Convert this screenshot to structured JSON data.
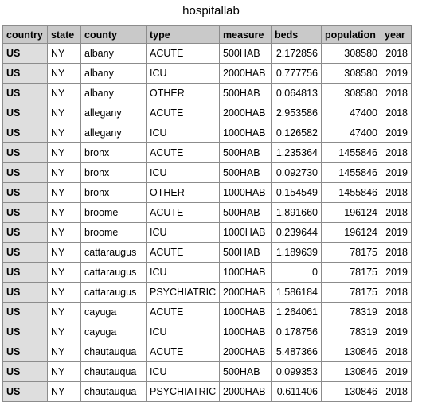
{
  "title": "hospitallab",
  "columns": [
    "country",
    "state",
    "county",
    "type",
    "measure",
    "beds",
    "population",
    "year"
  ],
  "rows": [
    {
      "country": "US",
      "state": "NY",
      "county": "albany",
      "type": "ACUTE",
      "measure": "500HAB",
      "beds": "2.172856",
      "population": "308580",
      "year": "2018"
    },
    {
      "country": "US",
      "state": "NY",
      "county": "albany",
      "type": "ICU",
      "measure": "2000HAB",
      "beds": "0.777756",
      "population": "308580",
      "year": "2019"
    },
    {
      "country": "US",
      "state": "NY",
      "county": "albany",
      "type": "OTHER",
      "measure": "500HAB",
      "beds": "0.064813",
      "population": "308580",
      "year": "2018"
    },
    {
      "country": "US",
      "state": "NY",
      "county": "allegany",
      "type": "ACUTE",
      "measure": "2000HAB",
      "beds": "2.953586",
      "population": "47400",
      "year": "2018"
    },
    {
      "country": "US",
      "state": "NY",
      "county": "allegany",
      "type": "ICU",
      "measure": "1000HAB",
      "beds": "0.126582",
      "population": "47400",
      "year": "2019"
    },
    {
      "country": "US",
      "state": "NY",
      "county": "bronx",
      "type": "ACUTE",
      "measure": "500HAB",
      "beds": "1.235364",
      "population": "1455846",
      "year": "2018"
    },
    {
      "country": "US",
      "state": "NY",
      "county": "bronx",
      "type": "ICU",
      "measure": "500HAB",
      "beds": "0.092730",
      "population": "1455846",
      "year": "2019"
    },
    {
      "country": "US",
      "state": "NY",
      "county": "bronx",
      "type": "OTHER",
      "measure": "1000HAB",
      "beds": "0.154549",
      "population": "1455846",
      "year": "2018"
    },
    {
      "country": "US",
      "state": "NY",
      "county": "broome",
      "type": "ACUTE",
      "measure": "500HAB",
      "beds": "1.891660",
      "population": "196124",
      "year": "2018"
    },
    {
      "country": "US",
      "state": "NY",
      "county": "broome",
      "type": "ICU",
      "measure": "1000HAB",
      "beds": "0.239644",
      "population": "196124",
      "year": "2019"
    },
    {
      "country": "US",
      "state": "NY",
      "county": "cattaraugus",
      "type": "ACUTE",
      "measure": "500HAB",
      "beds": "1.189639",
      "population": "78175",
      "year": "2018"
    },
    {
      "country": "US",
      "state": "NY",
      "county": "cattaraugus",
      "type": "ICU",
      "measure": "1000HAB",
      "beds": "0",
      "population": "78175",
      "year": "2019"
    },
    {
      "country": "US",
      "state": "NY",
      "county": "cattaraugus",
      "type": "PSYCHIATRIC",
      "measure": "2000HAB",
      "beds": "1.586184",
      "population": "78175",
      "year": "2018"
    },
    {
      "country": "US",
      "state": "NY",
      "county": "cayuga",
      "type": "ACUTE",
      "measure": "1000HAB",
      "beds": "1.264061",
      "population": "78319",
      "year": "2018"
    },
    {
      "country": "US",
      "state": "NY",
      "county": "cayuga",
      "type": "ICU",
      "measure": "1000HAB",
      "beds": "0.178756",
      "population": "78319",
      "year": "2019"
    },
    {
      "country": "US",
      "state": "NY",
      "county": "chautauqua",
      "type": "ACUTE",
      "measure": "2000HAB",
      "beds": "5.487366",
      "population": "130846",
      "year": "2018"
    },
    {
      "country": "US",
      "state": "NY",
      "county": "chautauqua",
      "type": "ICU",
      "measure": "500HAB",
      "beds": "0.099353",
      "population": "130846",
      "year": "2019"
    },
    {
      "country": "US",
      "state": "NY",
      "county": "chautauqua",
      "type": "PSYCHIATRIC",
      "measure": "2000HAB",
      "beds": "0.611406",
      "population": "130846",
      "year": "2018"
    }
  ]
}
